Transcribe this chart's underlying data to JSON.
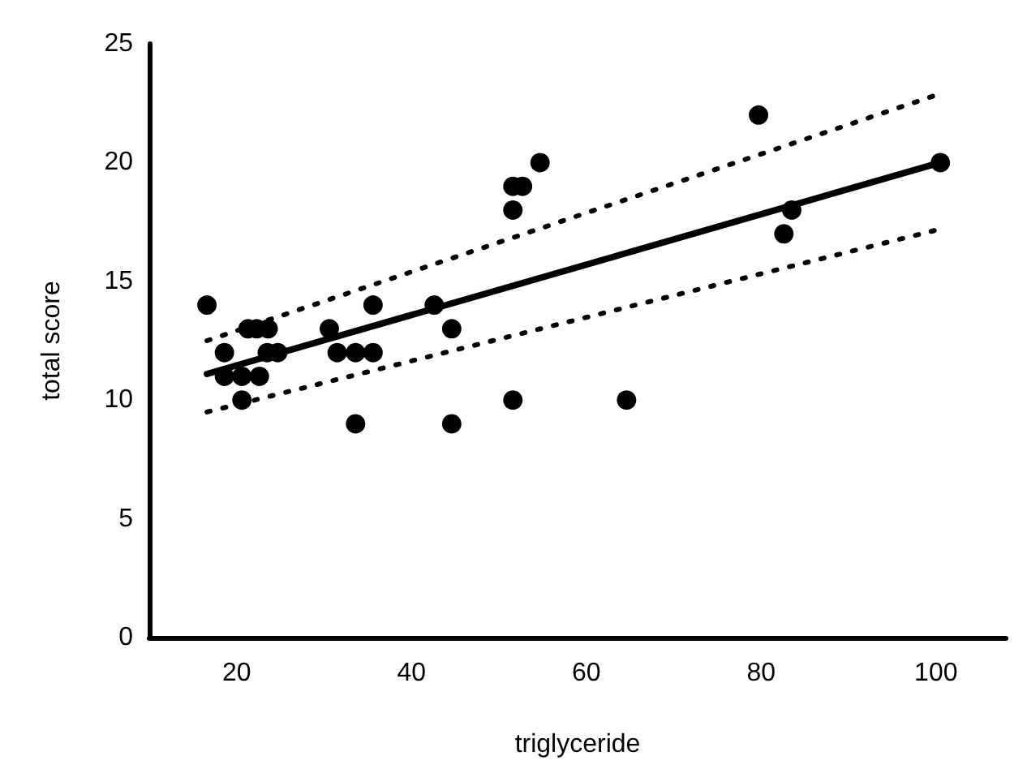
{
  "chart_data": {
    "type": "scatter",
    "xlabel": "triglyceride",
    "ylabel": "total score",
    "xlim": [
      10,
      108
    ],
    "xticks": [
      20,
      40,
      60,
      80,
      100
    ],
    "ylim": [
      0,
      25
    ],
    "yticks": [
      0,
      5,
      10,
      15,
      20,
      25
    ],
    "grid": false,
    "series": [
      {
        "color": "#000000",
        "marker": "circle",
        "x": [
          16.6,
          18.6,
          18.6,
          20.6,
          20.6,
          21.3,
          22.3,
          23.6,
          22.6,
          23.5,
          24.7,
          30.6,
          31.5,
          33.6,
          33.6,
          35.6,
          35.6,
          42.6,
          44.6,
          44.6,
          51.6,
          51.6,
          52.7,
          54.7,
          51.6,
          64.6,
          79.7,
          83.5,
          82.6,
          100.5
        ],
        "values": [
          14,
          12,
          11,
          11,
          10,
          13,
          13,
          13,
          11,
          12,
          12,
          13,
          12,
          12,
          9,
          14,
          12,
          14,
          13,
          9,
          18,
          19,
          19,
          20,
          10,
          10,
          22,
          18,
          17,
          20
        ]
      },
      {
        "type": "line",
        "color": "#000000",
        "marker": "none",
        "line_style": "solid",
        "x": [
          16.6,
          100.5
        ],
        "values": [
          11.1,
          20
        ]
      },
      {
        "type": "line",
        "color": "#000000",
        "marker": "none",
        "line_style": "dotted",
        "x": [
          16.6,
          100.5
        ],
        "values": [
          12.5,
          22.9
        ]
      },
      {
        "type": "line",
        "color": "#000000",
        "marker": "none",
        "line_style": "dotted",
        "x": [
          16.6,
          100.5
        ],
        "values": [
          9.5,
          17.2
        ]
      }
    ]
  }
}
